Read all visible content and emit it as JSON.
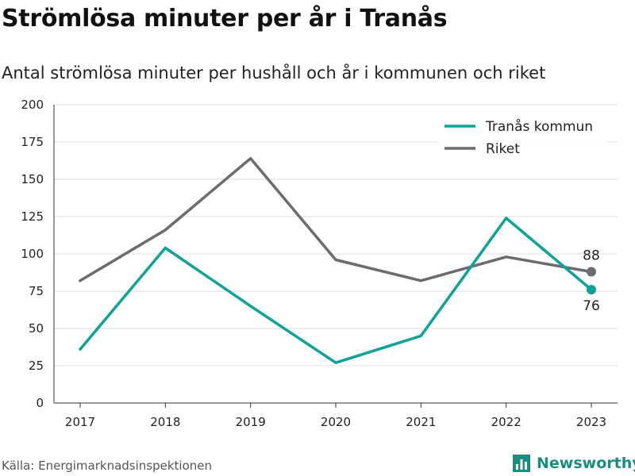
{
  "title": "Strömlösa minuter per år i Tranås",
  "subtitle": "Antal strömlösa minuter per hushåll och år i kommunen och riket",
  "source": "Källa: Energimarknadsinspektionen",
  "brand": {
    "name": "Newsworthy",
    "icon": "bar-chart-icon",
    "color": "#1a8c80"
  },
  "chart_data": {
    "type": "line",
    "x": [
      "2017",
      "2018",
      "2019",
      "2020",
      "2021",
      "2022",
      "2023"
    ],
    "yticks": [
      "0",
      "25",
      "50",
      "75",
      "100",
      "125",
      "150",
      "175",
      "200"
    ],
    "ylim": [
      0,
      200
    ],
    "grid": true,
    "legend_position": "top-right",
    "series": [
      {
        "name": "Tranås kommun",
        "color": "#0fa397",
        "values": [
          36,
          104,
          65,
          27,
          45,
          124,
          76
        ],
        "end_label": "76"
      },
      {
        "name": "Riket",
        "color": "#6b6b70",
        "values": [
          82,
          116,
          164,
          96,
          82,
          98,
          88
        ],
        "end_label": "88"
      }
    ]
  }
}
